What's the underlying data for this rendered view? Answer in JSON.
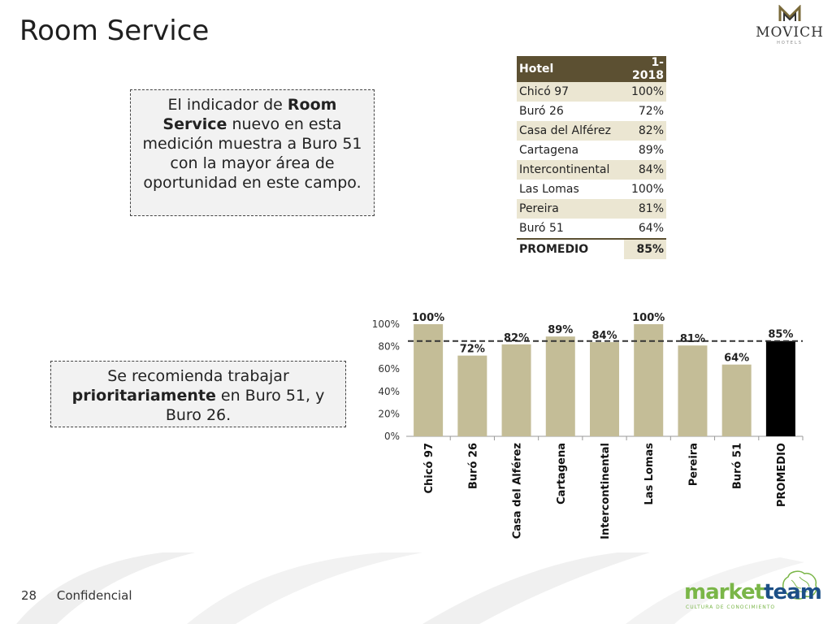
{
  "title": "Room Service",
  "brand": {
    "name": "MOVICH",
    "sub": "HOTELS"
  },
  "box1": {
    "p1": "El indicador de ",
    "b1": "Room Service",
    "p2": " nuevo en esta medición muestra a Buro 51 con la mayor área de oportunidad en este campo."
  },
  "box2": {
    "p1": "Se recomienda trabajar ",
    "b1": "prioritariamente",
    "p2": " en Buro 51, y Buro 26."
  },
  "table": {
    "headers": [
      "Hotel",
      "1-2018"
    ],
    "rows": [
      [
        "Chicó 97",
        "100%"
      ],
      [
        "Buró 26",
        "72%"
      ],
      [
        "Casa del Alférez",
        "82%"
      ],
      [
        "Cartagena",
        "89%"
      ],
      [
        "Intercontinental",
        "84%"
      ],
      [
        "Las Lomas",
        "100%"
      ],
      [
        "Pereira",
        "81%"
      ],
      [
        "Buró 51",
        "64%"
      ]
    ],
    "avg": [
      "PROMEDIO",
      "85%"
    ]
  },
  "chart_data": {
    "type": "bar",
    "categories": [
      "Chicó 97",
      "Buró 26",
      "Casa del Alférez",
      "Cartagena",
      "Intercontinental",
      "Las Lomas",
      "Pereira",
      "Buró 51",
      "PROMEDIO"
    ],
    "values": [
      100,
      72,
      82,
      89,
      84,
      100,
      81,
      64,
      85
    ],
    "labels": [
      "100%",
      "72%",
      "82%",
      "89%",
      "84%",
      "100%",
      "81%",
      "64%",
      "85%"
    ],
    "yticks": [
      "0%",
      "20%",
      "40%",
      "60%",
      "80%",
      "100%"
    ],
    "ylim": [
      0,
      100
    ],
    "reference_line": 85,
    "colors": {
      "bar": "#c4bd97",
      "highlight": "#000000",
      "line": "#333333"
    }
  },
  "footer": {
    "page": "28",
    "label": "Confidencial"
  },
  "logo": {
    "part1": "market",
    "part2": "team",
    "tagline": "CULTURA DE CONOCIMIENTO"
  }
}
